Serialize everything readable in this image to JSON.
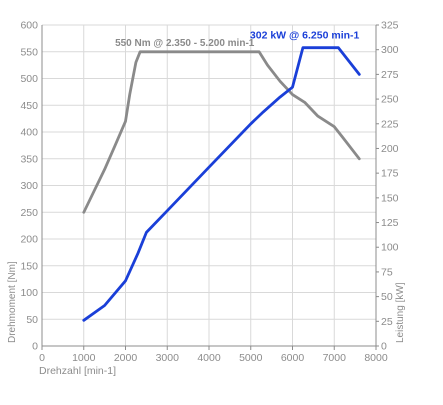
{
  "chart_data": {
    "type": "line",
    "title": "",
    "xlabel": "Drehzahl [min-1]",
    "ylabel_left": "Drehmoment [Nm]",
    "ylabel_right": "Leistung [kW]",
    "x_range": [
      0,
      8000
    ],
    "y_left_range": [
      0,
      600
    ],
    "y_right_range": [
      0,
      325
    ],
    "grid": true,
    "x_ticks": [
      "0",
      "1000",
      "2000",
      "3000",
      "4000",
      "5000",
      "6000",
      "7000",
      "8000"
    ],
    "y_left_ticks": [
      "0",
      "50",
      "100",
      "150",
      "200",
      "250",
      "300",
      "350",
      "400",
      "450",
      "500",
      "550",
      "600"
    ],
    "y_right_ticks": [
      "0",
      "25",
      "50",
      "75",
      "100",
      "125",
      "150",
      "175",
      "200",
      "225",
      "250",
      "275",
      "300",
      "325"
    ],
    "series": [
      {
        "name": "Drehmoment",
        "axis": "left",
        "color": "#8a8a8a",
        "points": [
          [
            1000,
            250
          ],
          [
            1250,
            290
          ],
          [
            1500,
            330
          ],
          [
            1750,
            375
          ],
          [
            2000,
            420
          ],
          [
            2100,
            470
          ],
          [
            2250,
            530
          ],
          [
            2350,
            550
          ],
          [
            3000,
            550
          ],
          [
            4000,
            550
          ],
          [
            5000,
            550
          ],
          [
            5200,
            550
          ],
          [
            5400,
            525
          ],
          [
            5700,
            495
          ],
          [
            6000,
            470
          ],
          [
            6300,
            455
          ],
          [
            6600,
            430
          ],
          [
            7000,
            410
          ],
          [
            7200,
            390
          ],
          [
            7600,
            350
          ]
        ]
      },
      {
        "name": "Leistung",
        "axis": "right",
        "color": "#1a3fd8",
        "points": [
          [
            1000,
            26
          ],
          [
            1500,
            41
          ],
          [
            2000,
            66
          ],
          [
            2300,
            94
          ],
          [
            2500,
            115
          ],
          [
            3000,
            137
          ],
          [
            4000,
            181
          ],
          [
            5000,
            225
          ],
          [
            5300,
            237
          ],
          [
            5700,
            252
          ],
          [
            6000,
            262
          ],
          [
            6250,
            302
          ],
          [
            7000,
            302
          ],
          [
            7100,
            302
          ],
          [
            7600,
            275
          ]
        ]
      }
    ],
    "annotations": [
      {
        "text": "550 Nm @ 2.350 - 5.200 min-1",
        "color": "#8a8a8a"
      },
      {
        "text": "302 kW @ 6.250 min-1",
        "color": "#1a3fd8"
      }
    ]
  }
}
